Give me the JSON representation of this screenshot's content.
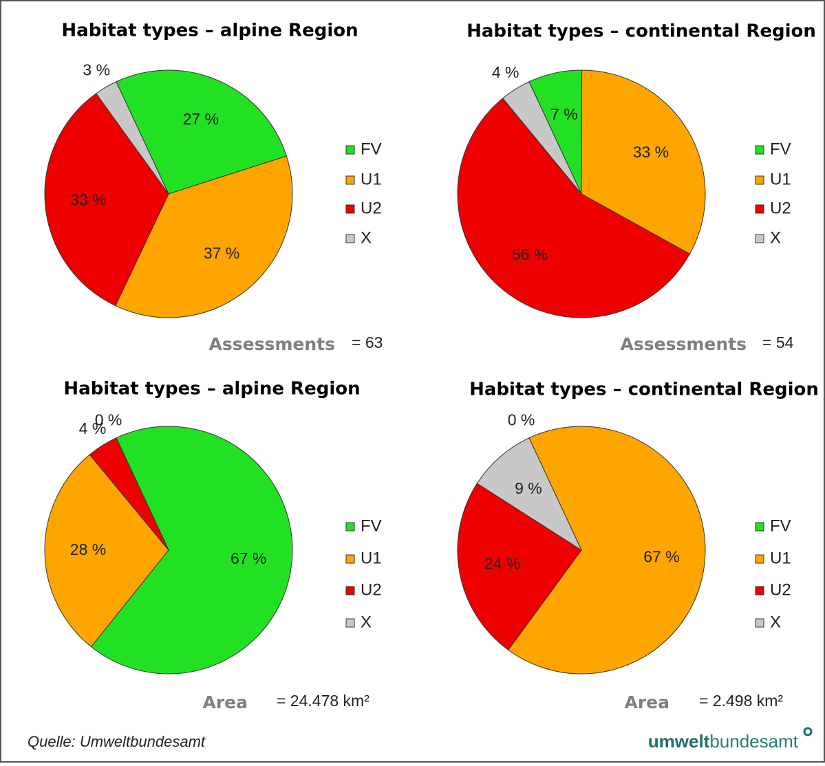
{
  "chart_data": [
    {
      "type": "pie",
      "title": "Habitat types – alpine Region",
      "categories": [
        "FV",
        "U1",
        "U2",
        "X"
      ],
      "values": [
        27,
        37,
        33,
        3
      ],
      "value_labels": [
        "27 %",
        "37 %",
        "33 %",
        "3 %"
      ],
      "colors": [
        "#22e022",
        "#ffa500",
        "#ee0000",
        "#c8c8c8"
      ],
      "note": "Assessments",
      "note_value": "= 63"
    },
    {
      "type": "pie",
      "title": "Habitat types – continental Region",
      "categories": [
        "FV",
        "U1",
        "U2",
        "X"
      ],
      "values": [
        7,
        33,
        56,
        4
      ],
      "value_labels": [
        "7 %",
        "33 %",
        "56 %",
        "4 %"
      ],
      "colors": [
        "#22e022",
        "#ffa500",
        "#ee0000",
        "#c8c8c8"
      ],
      "note": "Assessments",
      "note_value": "= 54"
    },
    {
      "type": "pie",
      "title": "Habitat types – alpine Region",
      "categories": [
        "FV",
        "U1",
        "U2",
        "X"
      ],
      "values": [
        67,
        28,
        4,
        0
      ],
      "value_labels": [
        "67 %",
        "28 %",
        "4 %",
        "0 %"
      ],
      "colors": [
        "#22e022",
        "#ffa500",
        "#ee0000",
        "#c8c8c8"
      ],
      "note": "Area",
      "note_value": "= 24.478 km²"
    },
    {
      "type": "pie",
      "title": "Habitat types – continental Region",
      "categories": [
        "FV",
        "U1",
        "U2",
        "X"
      ],
      "values": [
        0,
        67,
        24,
        9
      ],
      "value_labels": [
        "0 %",
        "67 %",
        "24 %",
        "9 %"
      ],
      "colors": [
        "#22e022",
        "#ffa500",
        "#ee0000",
        "#c8c8c8"
      ],
      "note": "Area",
      "note_value": "= 2.498 km²"
    }
  ],
  "source": "Quelle: Umweltbundesamt",
  "logo": {
    "bold": "umwelt",
    "rest": "bundesamt"
  }
}
